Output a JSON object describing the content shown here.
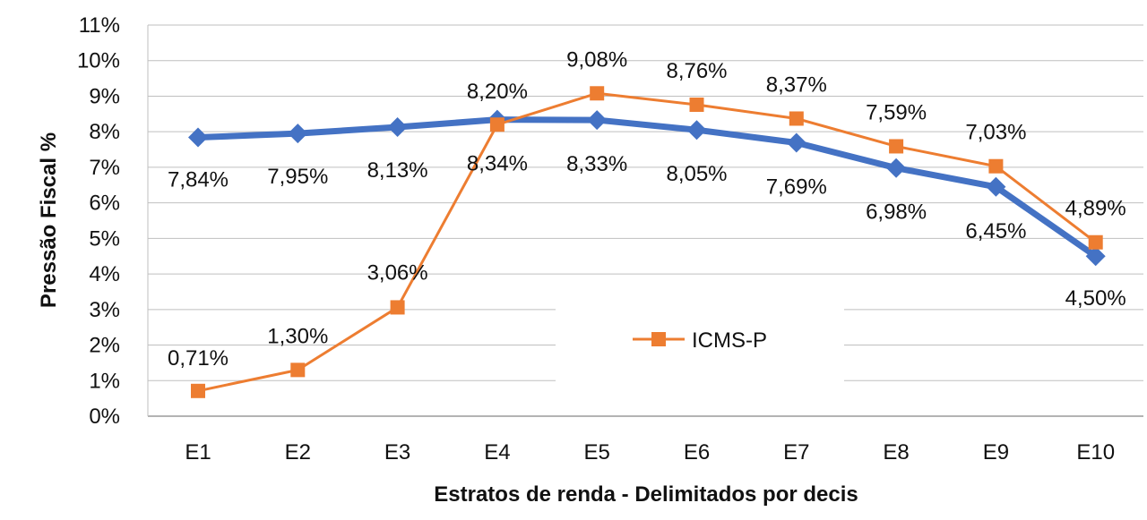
{
  "chart_data": {
    "type": "line",
    "categories": [
      "E1",
      "E2",
      "E3",
      "E4",
      "E5",
      "E6",
      "E7",
      "E8",
      "E9",
      "E10"
    ],
    "xlabel": "Estratos de renda - Delimitados por decis",
    "ylabel": "Pressão Fiscal %",
    "ylim": [
      0,
      11
    ],
    "yticks": [
      "0%",
      "1%",
      "2%",
      "3%",
      "4%",
      "5%",
      "6%",
      "7%",
      "8%",
      "9%",
      "10%",
      "11%"
    ],
    "grid": true,
    "legend_position": "center",
    "series": [
      {
        "color": "#4472C4",
        "marker": "diamond",
        "values": [
          7.84,
          7.95,
          8.13,
          8.34,
          8.33,
          8.05,
          7.69,
          6.98,
          6.45,
          4.5
        ],
        "labels": [
          "7,84%",
          "7,95%",
          "8,13%",
          "8,34%",
          "8,33%",
          "8,05%",
          "7,69%",
          "6,98%",
          "6,45%",
          "4,50%"
        ]
      },
      {
        "name": "ICMS-P",
        "color": "#ED7D31",
        "marker": "square",
        "values": [
          0.71,
          1.3,
          3.06,
          8.2,
          9.08,
          8.76,
          8.37,
          7.59,
          7.03,
          4.89
        ],
        "labels": [
          "0,71%",
          "1,30%",
          "3,06%",
          "8,20%",
          "9,08%",
          "8,76%",
          "8,37%",
          "7,59%",
          "7,03%",
          "4,89%"
        ]
      }
    ]
  }
}
